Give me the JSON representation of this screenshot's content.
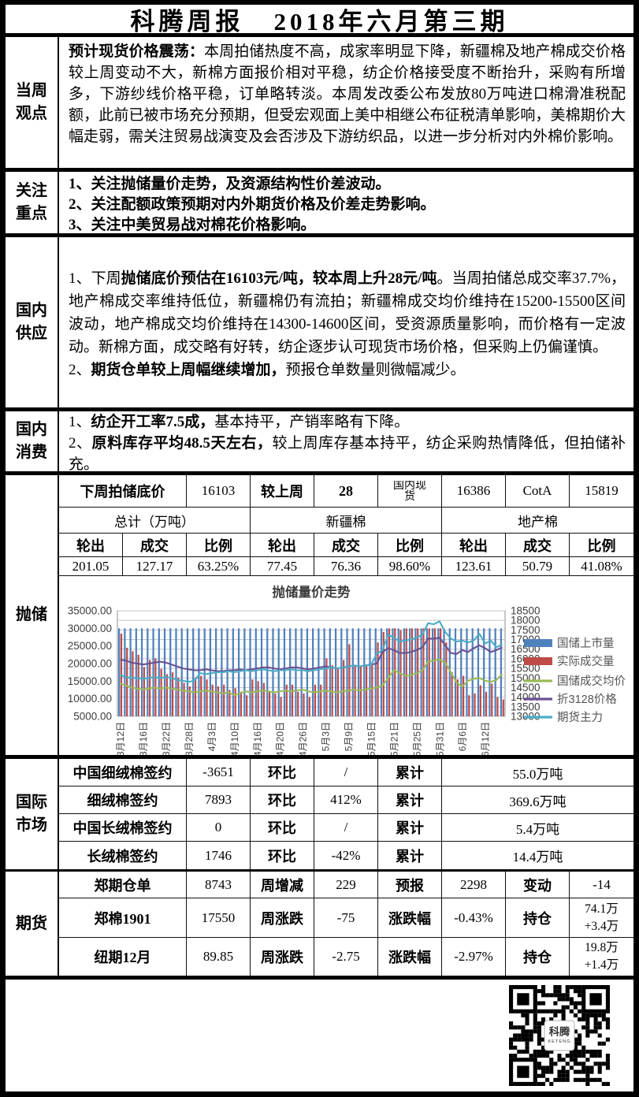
{
  "header": {
    "title_left": "科腾周报",
    "title_right": "2018年六月第三期"
  },
  "sections": {
    "guandian": {
      "label": "当周\n观点",
      "paras": [
        [
          {
            "b": 1,
            "t": "预计现货价格震荡："
          },
          {
            "b": 0,
            "t": "本周拍储热度不高，成家率明显下降，新疆棉及地产棉成交价格较上周变动不大，新棉方面报价相对平稳，纺企价格接受度不断抬升，采购有所增多，下游纱线价格平稳，订单略转淡。本周发改委公布发放80万吨进口棉滑准税配额，此前已被市场充分预期，但受宏观面上美中相继公布征税清单影响，美棉期价大幅走弱，需关注贸易战演变及会否涉及下游纺织品，以进一步分析对内外棉价影响。"
          }
        ]
      ]
    },
    "zhongdian": {
      "label": "关注\n重点",
      "paras": [
        [
          {
            "b": 1,
            "t": "1、关注抛储量价走势，及资源结构性价差波动。"
          }
        ],
        [
          {
            "b": 1,
            "t": "2、关注配额政策预期对内外期货价格及价差走势影响。"
          }
        ],
        [
          {
            "b": 1,
            "t": "3、关注中美贸易战对棉花价格影响。"
          }
        ]
      ]
    },
    "gongying": {
      "label": "国内\n供应",
      "paras": [
        [
          {
            "b": 0,
            "t": "1、下周"
          },
          {
            "b": 1,
            "t": "抛储底价预估在16103元/吨，较本周上升28元/吨"
          },
          {
            "b": 0,
            "t": "。当周拍储总成交率37.7%，地产棉成交率维持低位，新疆棉仍有流拍；新疆棉成交均价维持在15200-15500区间波动，地产棉成交均价维持在14300-14600区间，受资源质量影响，而价格有一定波动。新棉方面，成交略有好转，纺企逐步认可现货市场价格，但采购上仍偏谨慎。"
          }
        ],
        [
          {
            "b": 0,
            "t": "2、"
          },
          {
            "b": 1,
            "t": "期货仓单较上周幅继续增加，"
          },
          {
            "b": 0,
            "t": "预报仓单数量则微幅减少。"
          }
        ]
      ]
    },
    "xiaofei": {
      "label": "国内\n消费",
      "paras": [
        [
          {
            "b": 0,
            "t": "1、"
          },
          {
            "b": 1,
            "t": "纺企开工率7.5成，"
          },
          {
            "b": 0,
            "t": "基本持平，产销率略有下降。"
          }
        ],
        [
          {
            "b": 0,
            "t": "2、"
          },
          {
            "b": 1,
            "t": "原料库存平均48.5天左右，"
          },
          {
            "b": 0,
            "t": "较上周库存基本持平，纺企采购热情降低，但拍储补充。"
          }
        ]
      ]
    },
    "paochu": {
      "label": "抛储"
    },
    "guoji": {
      "label": "国际\n市场"
    },
    "qihuo": {
      "label": "期货"
    }
  },
  "tables": {
    "paochu": {
      "rows": [
        {
          "cells": [
            {
              "t": "下周拍储底价",
              "b": 1,
              "s": 2
            },
            {
              "t": "16103"
            },
            {
              "t": "较上周",
              "b": 1
            },
            {
              "t": "28",
              "b": 1
            },
            {
              "t": "国内现货",
              "clip": 1
            },
            {
              "t": "16386"
            },
            {
              "t": "CotA"
            },
            {
              "t": "15819"
            }
          ]
        },
        {
          "cells": [
            {
              "t": "总计（万吨）",
              "s": 3
            },
            {
              "t": "新疆棉",
              "s": 3
            },
            {
              "t": "地产棉",
              "s": 3
            }
          ]
        },
        {
          "cells": [
            {
              "t": "轮出",
              "b": 1
            },
            {
              "t": "成交",
              "b": 1
            },
            {
              "t": "比例",
              "b": 1
            },
            {
              "t": "轮出",
              "b": 1
            },
            {
              "t": "成交",
              "b": 1
            },
            {
              "t": "比例",
              "b": 1
            },
            {
              "t": "轮出",
              "b": 1
            },
            {
              "t": "成交",
              "b": 1
            },
            {
              "t": "比例",
              "b": 1
            }
          ]
        },
        {
          "cells": [
            {
              "t": "201.05"
            },
            {
              "t": "127.17"
            },
            {
              "t": "63.25%"
            },
            {
              "t": "77.45"
            },
            {
              "t": "76.36"
            },
            {
              "t": "98.60%"
            },
            {
              "t": "123.61"
            },
            {
              "t": "50.79"
            },
            {
              "t": "41.08%"
            }
          ]
        }
      ]
    },
    "guoji": {
      "nb": 1,
      "rows": [
        {
          "cells": [
            {
              "t": "中国细绒棉签约",
              "b": 1,
              "s": 2
            },
            {
              "t": "-3651"
            },
            {
              "t": "环比",
              "b": 1
            },
            {
              "t": "/"
            },
            {
              "t": "累计",
              "b": 1
            },
            {
              "t": "55.0万吨",
              "s": 3
            }
          ]
        },
        {
          "cells": [
            {
              "t": "细绒棉签约",
              "b": 1,
              "s": 2
            },
            {
              "t": "7893"
            },
            {
              "t": "环比",
              "b": 1
            },
            {
              "t": "412%"
            },
            {
              "t": "累计",
              "b": 1
            },
            {
              "t": "369.6万吨",
              "s": 3
            }
          ]
        },
        {
          "cells": [
            {
              "t": "中国长绒棉签约",
              "b": 1,
              "s": 2
            },
            {
              "t": "0"
            },
            {
              "t": "环比",
              "b": 1
            },
            {
              "t": "/"
            },
            {
              "t": "累计",
              "b": 1
            },
            {
              "t": "5.4万吨",
              "s": 3
            }
          ]
        },
        {
          "cells": [
            {
              "t": "长绒棉签约",
              "b": 1,
              "s": 2
            },
            {
              "t": "1746"
            },
            {
              "t": "环比",
              "b": 1
            },
            {
              "t": "-42%"
            },
            {
              "t": "累计",
              "b": 1
            },
            {
              "t": "14.4万吨",
              "s": 3
            }
          ]
        }
      ]
    },
    "qihuo": {
      "nb": 1,
      "rows": [
        {
          "cells": [
            {
              "t": "郑期仓单",
              "b": 1,
              "s": 2
            },
            {
              "t": "8743"
            },
            {
              "t": "周增减",
              "b": 1
            },
            {
              "t": "229"
            },
            {
              "t": "预报",
              "b": 1
            },
            {
              "t": "2298"
            },
            {
              "t": "变动",
              "b": 1
            },
            {
              "t": "-14"
            }
          ]
        },
        {
          "cells": [
            {
              "t": "郑棉1901",
              "b": 1,
              "s": 2
            },
            {
              "t": "17550"
            },
            {
              "t": "周涨跌",
              "b": 1
            },
            {
              "t": "-75"
            },
            {
              "t": "涨跌幅",
              "b": 1
            },
            {
              "t": "-0.43%"
            },
            {
              "t": "持仓",
              "b": 1
            },
            {
              "t": "74.1万\n+3.4万",
              "ml": 1
            }
          ]
        },
        {
          "cells": [
            {
              "t": "纽期12月",
              "b": 1,
              "s": 2
            },
            {
              "t": "89.85"
            },
            {
              "t": "周涨跌",
              "b": 1
            },
            {
              "t": "-2.75"
            },
            {
              "t": "涨跌幅",
              "b": 1
            },
            {
              "t": "-2.97%"
            },
            {
              "t": "持仓",
              "b": 1
            },
            {
              "t": "19.8万\n+1.4万",
              "ml": 1
            }
          ]
        }
      ]
    }
  },
  "chart_data": {
    "type": "combo",
    "title": "抛储量价走势",
    "n_points": 68,
    "x_tick_every": 4,
    "x_tick_labels": [
      "3月12日",
      "3月16日",
      "3月22日",
      "3月28日",
      "4月3日",
      "4月10日",
      "4月16日",
      "4月20日",
      "4月26日",
      "5月3日",
      "5月9日",
      "5月15日",
      "5月21日",
      "5月25日",
      "5月31日",
      "6月6日",
      "6月12日"
    ],
    "left_axis": {
      "min": 5000,
      "max": 35000,
      "step": 5000,
      "decimals": 2
    },
    "right_axis": {
      "min": 13000,
      "max": 18500,
      "step": 500,
      "decimals": 0
    },
    "grid": true,
    "legend_position": "right",
    "series": [
      {
        "name": "国储上市量",
        "type": "bar",
        "axis": "left",
        "color": "#4F81BD",
        "constant": 30000
      },
      {
        "name": "实际成交量",
        "type": "bar",
        "axis": "left",
        "color": "#BE4B48",
        "values": [
          28500,
          24500,
          23500,
          22500,
          19000,
          21000,
          21500,
          18500,
          17000,
          17500,
          16000,
          14500,
          13500,
          16000,
          16500,
          15500,
          14000,
          13500,
          14000,
          12500,
          13000,
          12000,
          11000,
          15500,
          15000,
          14500,
          12000,
          11500,
          10500,
          14000,
          14000,
          12000,
          11500,
          10500,
          14000,
          14000,
          21500,
          19500,
          18500,
          21000,
          25500,
          19500,
          19000,
          19500,
          19500,
          26000,
          29000,
          30000,
          30000,
          29500,
          30000,
          30000,
          30000,
          30000,
          30000,
          30000,
          30000,
          26000,
          17500,
          15500,
          16500,
          11000,
          11500,
          13800,
          12000,
          14300,
          10500,
          9800
        ]
      },
      {
        "name": "国储成交均价",
        "type": "line",
        "axis": "right",
        "color": "#9BBB59",
        "values": [
          14700,
          14600,
          14500,
          14450,
          14400,
          14450,
          14500,
          14450,
          14500,
          14450,
          14400,
          14350,
          14300,
          14250,
          14300,
          14350,
          14300,
          14250,
          14200,
          14250,
          14100,
          14200,
          14300,
          14250,
          14300,
          14350,
          14300,
          14250,
          14300,
          14350,
          14300,
          14350,
          14400,
          14300,
          14250,
          14300,
          14350,
          14300,
          14250,
          14300,
          14350,
          14400,
          14350,
          14400,
          14450,
          14500,
          14600,
          15000,
          15400,
          15250,
          15100,
          15150,
          15250,
          15400,
          15850,
          15900,
          15950,
          15800,
          15300,
          14750,
          14550,
          14850,
          14950,
          15000,
          14850,
          14800,
          14900,
          15200
        ]
      },
      {
        "name": "折3128价格",
        "type": "line",
        "axis": "right",
        "color": "#6A5192",
        "values": [
          15950,
          15900,
          15800,
          15750,
          15700,
          15750,
          15800,
          15850,
          15800,
          15700,
          15600,
          15500,
          15450,
          15400,
          15400,
          15450,
          15400,
          15350,
          15350,
          15400,
          15400,
          15450,
          15400,
          15450,
          15500,
          15550,
          15550,
          15500,
          15450,
          15500,
          15550,
          15550,
          15500,
          15450,
          15500,
          15550,
          15600,
          15550,
          15500,
          15550,
          15600,
          15650,
          15600,
          15650,
          15700,
          15750,
          16350,
          16550,
          16450,
          16300,
          16300,
          16350,
          16450,
          16600,
          17050,
          17050,
          17100,
          16700,
          16300,
          16250,
          16450,
          16350,
          16550,
          16700,
          16550,
          16350,
          16450,
          16600
        ]
      },
      {
        "name": "期货主力",
        "type": "line",
        "axis": "right",
        "color": "#4BACC6",
        "values": [
          15150,
          15050,
          15000,
          15000,
          14950,
          15000,
          15050,
          15000,
          15050,
          15000,
          14900,
          14850,
          14800,
          14850,
          15250,
          15200,
          15250,
          15300,
          15300,
          15350,
          15300,
          15350,
          15400,
          15350,
          15400,
          15450,
          15400,
          15350,
          15400,
          15400,
          15450,
          15400,
          15400,
          15350,
          15400,
          15450,
          15500,
          15550,
          15500,
          15550,
          15600,
          15650,
          15600,
          15650,
          15700,
          16250,
          16450,
          17250,
          17100,
          16900,
          16950,
          17000,
          17100,
          17250,
          17850,
          17800,
          17950,
          17400,
          17050,
          16900,
          16950,
          16850,
          16950,
          17300,
          16800,
          16950,
          16600,
          16750
        ]
      }
    ]
  },
  "footer": {
    "qr": {
      "center_line1": "科腾",
      "center_line2": "KETENG"
    }
  }
}
